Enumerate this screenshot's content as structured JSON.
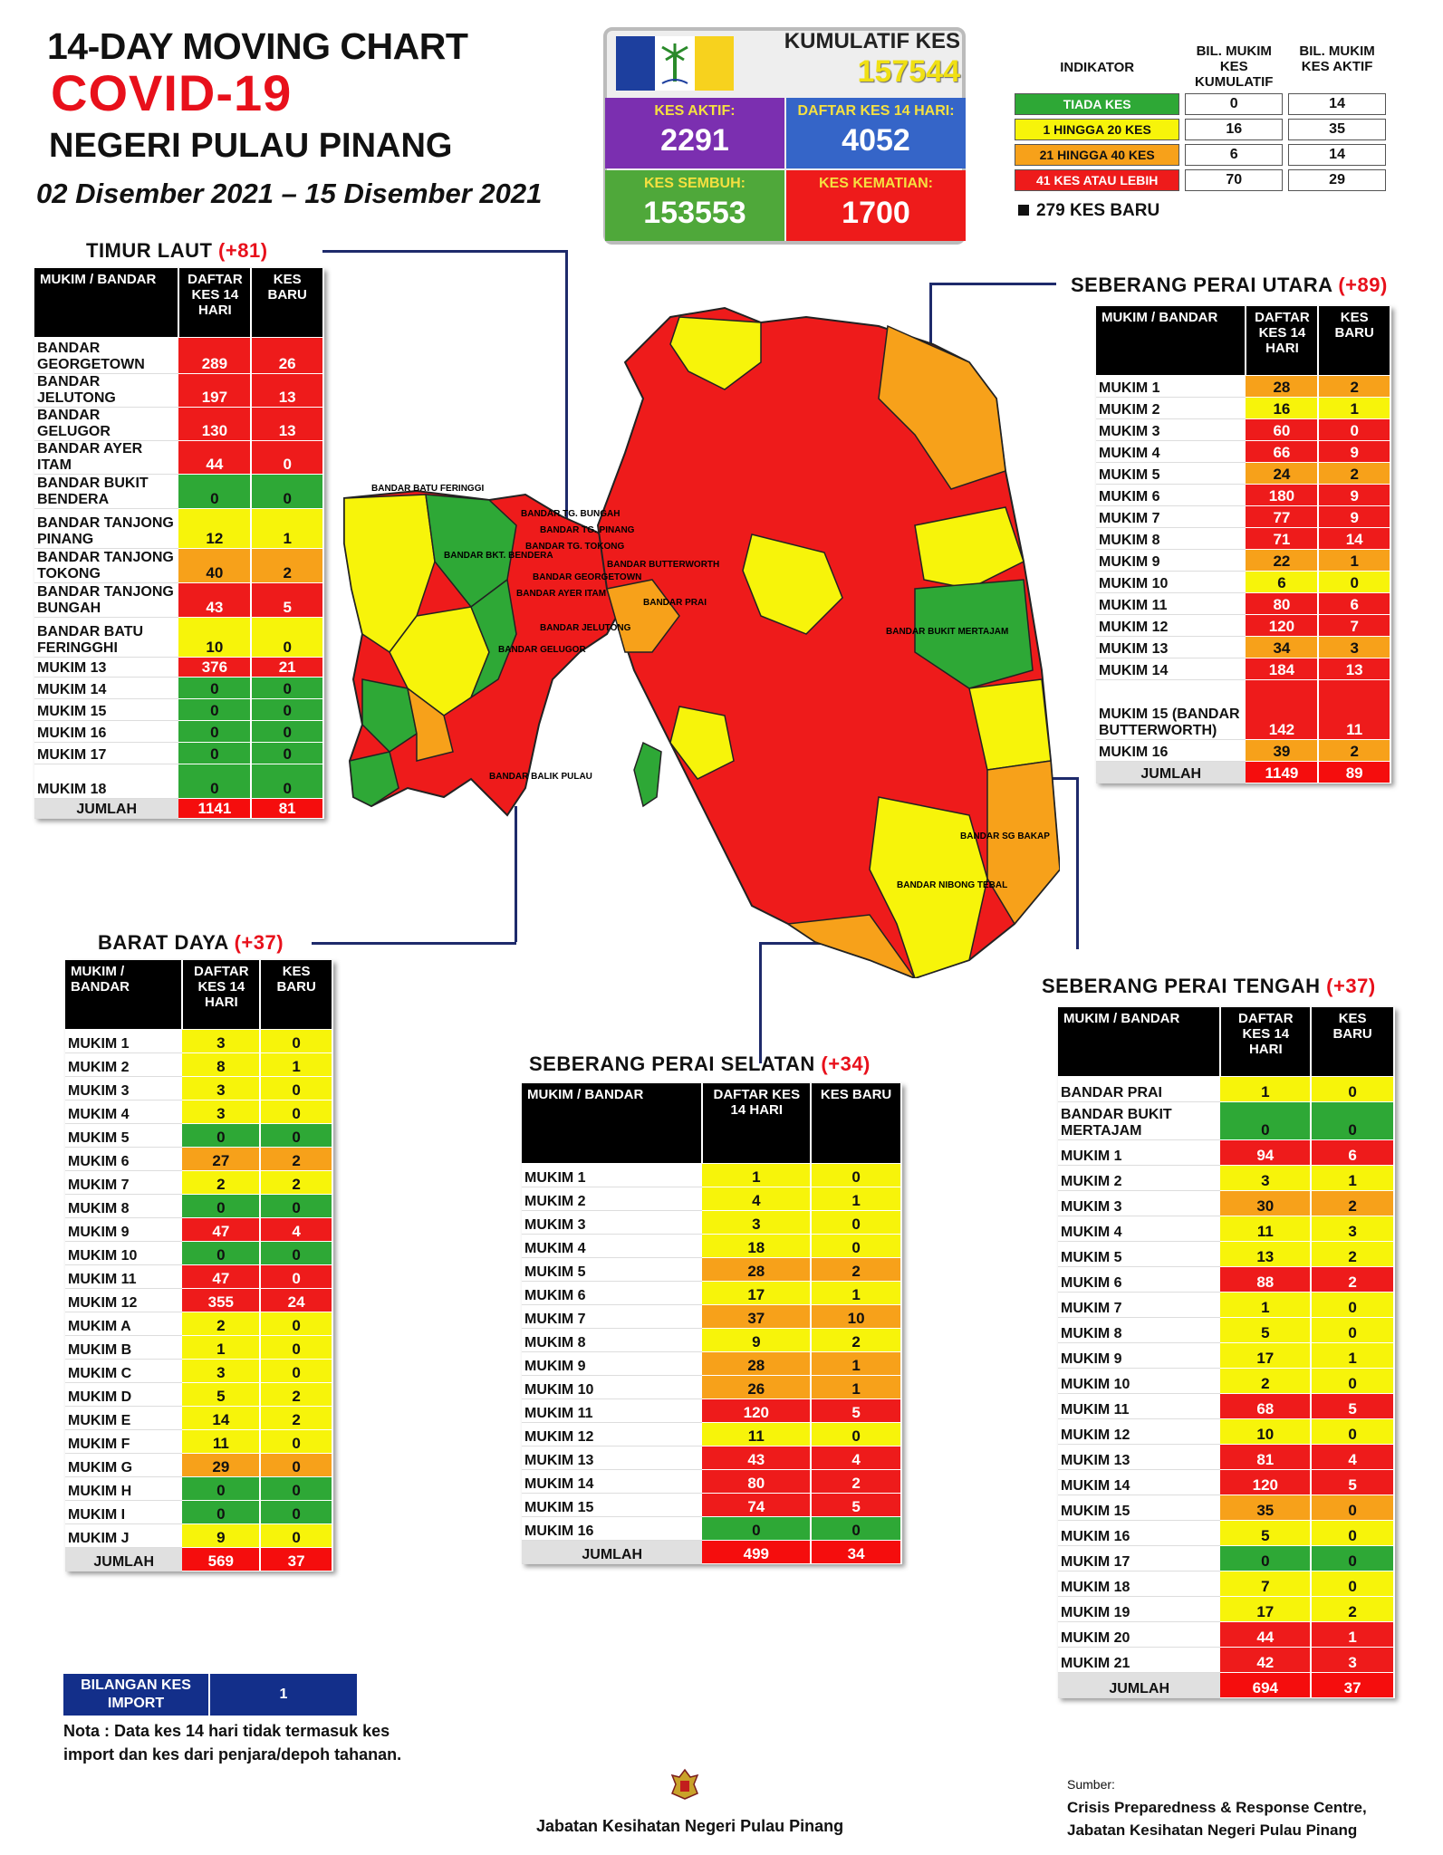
{
  "header": {
    "line1": "14-DAY MOVING CHART",
    "line2": "COVID-19",
    "line3": "NEGERI PULAU PINANG",
    "dates": "02 Disember 2021 – 15 Disember 2021"
  },
  "summary": {
    "kumulatif_label": "KUMULATIF KES",
    "kumulatif_value": "157544",
    "aktif_label": "KES AKTIF:",
    "aktif_value": "2291",
    "daftar_label": "DAFTAR KES 14 HARI:",
    "daftar_value": "4052",
    "sembuh_label": "KES SEMBUH:",
    "sembuh_value": "153553",
    "kematian_label": "KES KEMATIAN:",
    "kematian_value": "1700",
    "colors": {
      "aktif": "#7b2fb0",
      "daftar": "#3565c8",
      "sembuh": "#4fa83a",
      "kematian": "#ee1b1b"
    }
  },
  "indicator": {
    "h1": "INDIKATOR",
    "h2": "BIL. MUKIM KES KUMULATIF",
    "h3": "BIL. MUKIM KES AKTIF",
    "rows": [
      {
        "label": "TIADA KES",
        "a": "0",
        "b": "14",
        "color": "#2ea836",
        "fg": "#fff"
      },
      {
        "label": "1 HINGGA 20 KES",
        "a": "16",
        "b": "35",
        "color": "#f7f40a",
        "fg": "#111"
      },
      {
        "label": "21 HINGGA 40 KES",
        "a": "6",
        "b": "14",
        "color": "#f7a11a",
        "fg": "#111"
      },
      {
        "label": "41 KES ATAU LEBIH",
        "a": "70",
        "b": "29",
        "color": "#ee1b1b",
        "fg": "#fff"
      }
    ],
    "kes_baru": "279 KES BARU"
  },
  "cols": {
    "mukim_bandar": "MUKIM / BANDAR",
    "daftar": "DAFTAR KES 14 HARI",
    "kes_baru": "KES BARU"
  },
  "sections": {
    "timur_laut": {
      "title": "TIMUR LAUT",
      "plus": "(+81)",
      "rows": [
        [
          "BANDAR GEORGETOWN",
          "289",
          "26"
        ],
        [
          "BANDAR JELUTONG",
          "197",
          "13"
        ],
        [
          "BANDAR GELUGOR",
          "130",
          "13"
        ],
        [
          "BANDAR AYER ITAM",
          "44",
          "0"
        ],
        [
          "BANDAR BUKIT BENDERA",
          "0",
          "0"
        ],
        [
          "BANDAR TANJONG PINANG",
          "12",
          "1"
        ],
        [
          "BANDAR TANJONG TOKONG",
          "40",
          "2"
        ],
        [
          "BANDAR TANJONG BUNGAH",
          "43",
          "5"
        ],
        [
          "BANDAR BATU FERINGGHI",
          "10",
          "0"
        ],
        [
          "MUKIM 13",
          "376",
          "21"
        ],
        [
          "MUKIM 14",
          "0",
          "0"
        ],
        [
          "MUKIM 15",
          "0",
          "0"
        ],
        [
          "MUKIM 16",
          "0",
          "0"
        ],
        [
          "MUKIM 17",
          "0",
          "0"
        ],
        [
          "MUKIM 18",
          "0",
          "0"
        ],
        [
          "JUMLAH",
          "1141",
          "81"
        ]
      ]
    },
    "spu": {
      "title": "SEBERANG PERAI UTARA",
      "plus": "(+89)",
      "rows": [
        [
          "MUKIM 1",
          "28",
          "2"
        ],
        [
          "MUKIM 2",
          "16",
          "1"
        ],
        [
          "MUKIM 3",
          "60",
          "0"
        ],
        [
          "MUKIM 4",
          "66",
          "9"
        ],
        [
          "MUKIM 5",
          "24",
          "2"
        ],
        [
          "MUKIM 6",
          "180",
          "9"
        ],
        [
          "MUKIM 7",
          "77",
          "9"
        ],
        [
          "MUKIM 8",
          "71",
          "14"
        ],
        [
          "MUKIM 9",
          "22",
          "1"
        ],
        [
          "MUKIM 10",
          "6",
          "0"
        ],
        [
          "MUKIM 11",
          "80",
          "6"
        ],
        [
          "MUKIM 12",
          "120",
          "7"
        ],
        [
          "MUKIM 13",
          "34",
          "3"
        ],
        [
          "MUKIM 14",
          "184",
          "13"
        ],
        [
          "MUKIM 15 (BANDAR BUTTERWORTH)",
          "142",
          "11"
        ],
        [
          "MUKIM 16",
          "39",
          "2"
        ],
        [
          "JUMLAH",
          "1149",
          "89"
        ]
      ]
    },
    "barat_daya": {
      "title": "BARAT DAYA",
      "plus": "(+37)",
      "rows": [
        [
          "MUKIM 1",
          "3",
          "0"
        ],
        [
          "MUKIM 2",
          "8",
          "1"
        ],
        [
          "MUKIM 3",
          "3",
          "0"
        ],
        [
          "MUKIM 4",
          "3",
          "0"
        ],
        [
          "MUKIM 5",
          "0",
          "0"
        ],
        [
          "MUKIM 6",
          "27",
          "2"
        ],
        [
          "MUKIM 7",
          "2",
          "2"
        ],
        [
          "MUKIM 8",
          "0",
          "0"
        ],
        [
          "MUKIM 9",
          "47",
          "4"
        ],
        [
          "MUKIM 10",
          "0",
          "0"
        ],
        [
          "MUKIM 11",
          "47",
          "0"
        ],
        [
          "MUKIM 12",
          "355",
          "24"
        ],
        [
          "MUKIM A",
          "2",
          "0"
        ],
        [
          "MUKIM B",
          "1",
          "0"
        ],
        [
          "MUKIM C",
          "3",
          "0"
        ],
        [
          "MUKIM D",
          "5",
          "2"
        ],
        [
          "MUKIM E",
          "14",
          "2"
        ],
        [
          "MUKIM F",
          "11",
          "0"
        ],
        [
          "MUKIM G",
          "29",
          "0"
        ],
        [
          "MUKIM H",
          "0",
          "0"
        ],
        [
          "MUKIM I",
          "0",
          "0"
        ],
        [
          "MUKIM J",
          "9",
          "0"
        ],
        [
          "JUMLAH",
          "569",
          "37"
        ]
      ]
    },
    "sps": {
      "title": "SEBERANG PERAI SELATAN",
      "plus": "(+34)",
      "rows": [
        [
          "MUKIM 1",
          "1",
          "0"
        ],
        [
          "MUKIM 2",
          "4",
          "1"
        ],
        [
          "MUKIM 3",
          "3",
          "0"
        ],
        [
          "MUKIM 4",
          "18",
          "0"
        ],
        [
          "MUKIM 5",
          "28",
          "2"
        ],
        [
          "MUKIM 6",
          "17",
          "1"
        ],
        [
          "MUKIM 7",
          "37",
          "10"
        ],
        [
          "MUKIM 8",
          "9",
          "2"
        ],
        [
          "MUKIM 9",
          "28",
          "1"
        ],
        [
          "MUKIM 10",
          "26",
          "1"
        ],
        [
          "MUKIM 11",
          "120",
          "5"
        ],
        [
          "MUKIM 12",
          "11",
          "0"
        ],
        [
          "MUKIM 13",
          "43",
          "4"
        ],
        [
          "MUKIM 14",
          "80",
          "2"
        ],
        [
          "MUKIM 15",
          "74",
          "5"
        ],
        [
          "MUKIM 16",
          "0",
          "0"
        ],
        [
          "JUMLAH",
          "499",
          "34"
        ]
      ]
    },
    "spt": {
      "title": "SEBERANG PERAI TENGAH",
      "plus": "(+37)",
      "rows": [
        [
          "BANDAR PRAI",
          "1",
          "0"
        ],
        [
          "BANDAR BUKIT MERTAJAM",
          "0",
          "0"
        ],
        [
          "MUKIM 1",
          "94",
          "6"
        ],
        [
          "MUKIM 2",
          "3",
          "1"
        ],
        [
          "MUKIM 3",
          "30",
          "2"
        ],
        [
          "MUKIM 4",
          "11",
          "3"
        ],
        [
          "MUKIM 5",
          "13",
          "2"
        ],
        [
          "MUKIM 6",
          "88",
          "2"
        ],
        [
          "MUKIM 7",
          "1",
          "0"
        ],
        [
          "MUKIM 8",
          "5",
          "0"
        ],
        [
          "MUKIM 9",
          "17",
          "1"
        ],
        [
          "MUKIM 10",
          "2",
          "0"
        ],
        [
          "MUKIM 11",
          "68",
          "5"
        ],
        [
          "MUKIM 12",
          "10",
          "0"
        ],
        [
          "MUKIM 13",
          "81",
          "4"
        ],
        [
          "MUKIM 14",
          "120",
          "5"
        ],
        [
          "MUKIM 15",
          "35",
          "0"
        ],
        [
          "MUKIM 16",
          "5",
          "0"
        ],
        [
          "MUKIM 17",
          "0",
          "0"
        ],
        [
          "MUKIM 18",
          "7",
          "0"
        ],
        [
          "MUKIM 19",
          "17",
          "2"
        ],
        [
          "MUKIM 20",
          "44",
          "1"
        ],
        [
          "MUKIM 21",
          "42",
          "3"
        ],
        [
          "JUMLAH",
          "694",
          "37"
        ]
      ]
    }
  },
  "import": {
    "label": "BILANGAN KES IMPORT",
    "value": "1"
  },
  "note": "Nota : Data kes 14 hari tidak termasuk kes import dan kes dari penjara/depoh tahanan.",
  "footer": "Jabatan Kesihatan Negeri Pulau Pinang",
  "source": {
    "label": "Sumber:",
    "line1": "Crisis Preparedness & Response Centre,",
    "line2": "Jabatan Kesihatan Negeri Pulau Pinang"
  },
  "map_labels": {
    "batu": "BANDAR BATU FERINGGI",
    "bungah": "BANDAR TG. BUNGAH",
    "pinang": "BANDAR TG. PINANG",
    "tokong": "BANDAR TG. TOKONG",
    "bendera": "BANDAR BKT. BENDERA",
    "george": "BANDAR GEORGETOWN",
    "ayer": "BANDAR AYER ITAM",
    "jelutong": "BANDAR JELUTONG",
    "gelugor": "BANDAR GELUGOR",
    "butterworth": "BANDAR BUTTERWORTH",
    "prai": "BANDAR PRAI",
    "mertajam": "BANDAR BUKIT MERTAJAM",
    "sgbakap": "BANDAR SG BAKAP",
    "nibong": "BANDAR NIBONG TEBAL",
    "balik": "BANDAR BALIK PULAU"
  }
}
